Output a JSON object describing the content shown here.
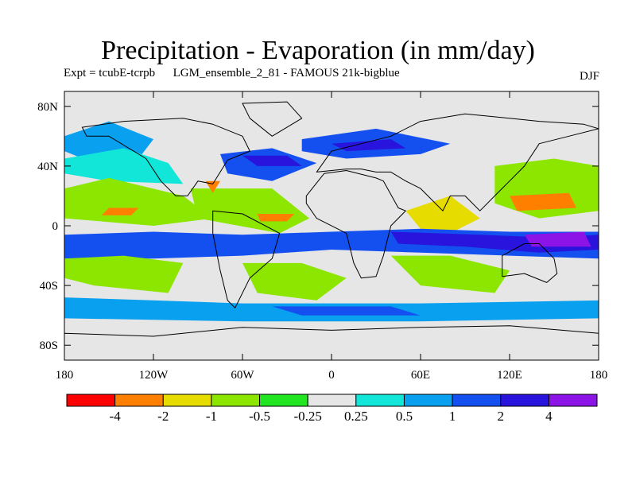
{
  "chart_data": {
    "type": "filled-contour map",
    "title": "Precipitation - Evaporation (in mm/day)",
    "subtitle": "Expt = tcubE-tcrpb      LGM_ensemble_2_81 - FAMOUS 21k-bigblue",
    "season": "DJF",
    "lon_range": [
      -180,
      180
    ],
    "lat_range": [
      -90,
      90
    ],
    "x_ticks": [
      {
        "lon": -180,
        "label": "180"
      },
      {
        "lon": -120,
        "label": "120W"
      },
      {
        "lon": -60,
        "label": "60W"
      },
      {
        "lon": 0,
        "label": "0"
      },
      {
        "lon": 60,
        "label": "60E"
      },
      {
        "lon": 120,
        "label": "120E"
      },
      {
        "lon": 180,
        "label": "180"
      }
    ],
    "y_ticks": [
      {
        "lat": 80,
        "label": "80N"
      },
      {
        "lat": 40,
        "label": "40N"
      },
      {
        "lat": 0,
        "label": "0"
      },
      {
        "lat": -40,
        "label": "40S"
      },
      {
        "lat": -80,
        "label": "80S"
      }
    ],
    "colorbar": {
      "colors": [
        "#ff0000",
        "#ff8000",
        "#e6dc00",
        "#8ce600",
        "#22e622",
        "#e6e6e6",
        "#12e6d8",
        "#0aa0f0",
        "#1450f0",
        "#2814dc",
        "#8c14e6"
      ],
      "labels": [
        "-4",
        "-2",
        "-1",
        "-0.5",
        "-0.25",
        "0.25",
        "0.5",
        "1",
        "2",
        "4"
      ]
    },
    "regions": [
      {
        "name": "north-pacific-wet",
        "lon": [
          -180,
          -150,
          -120,
          -130,
          -160,
          -180
        ],
        "lat": [
          60,
          70,
          58,
          45,
          42,
          50
        ],
        "level": 7
      },
      {
        "name": "north-pacific-moist",
        "lon": [
          -180,
          -140,
          -110,
          -100,
          -150,
          -180
        ],
        "lat": [
          45,
          52,
          42,
          28,
          30,
          35
        ],
        "level": 6
      },
      {
        "name": "north-pacific-dry",
        "lon": [
          -180,
          -150,
          -100,
          -80,
          -120,
          -180
        ],
        "lat": [
          25,
          32,
          20,
          5,
          0,
          5
        ],
        "level": 3
      },
      {
        "name": "north-pacific-core",
        "lon": [
          -150,
          -130,
          -135,
          -155
        ],
        "lat": [
          12,
          12,
          7,
          7
        ],
        "level": 1
      },
      {
        "name": "north-atlantic-wet",
        "lon": [
          -75,
          -40,
          -10,
          -40,
          -70
        ],
        "lat": [
          48,
          52,
          42,
          30,
          35
        ],
        "level": 8
      },
      {
        "name": "north-atlantic-core",
        "lon": [
          -60,
          -30,
          -20,
          -50
        ],
        "lat": [
          47,
          47,
          40,
          40
        ],
        "level": 9
      },
      {
        "name": "atlantic-dry-band",
        "lon": [
          -95,
          -40,
          -15,
          -35,
          -90
        ],
        "lat": [
          25,
          25,
          5,
          -5,
          5
        ],
        "level": 3
      },
      {
        "name": "atlantic-dry-core",
        "lon": [
          -50,
          -25,
          -30,
          -48
        ],
        "lat": [
          8,
          8,
          3,
          3
        ],
        "level": 1
      },
      {
        "name": "gulf-mexico-dry",
        "lon": [
          -85,
          -75,
          -80
        ],
        "lat": [
          30,
          30,
          22
        ],
        "level": 1
      },
      {
        "name": "eurasia-wet",
        "lon": [
          -20,
          30,
          80,
          60,
          10,
          -20
        ],
        "lat": [
          58,
          65,
          55,
          48,
          45,
          50
        ],
        "level": 8
      },
      {
        "name": "eurasia-core",
        "lon": [
          0,
          40,
          50,
          10
        ],
        "lat": [
          55,
          58,
          52,
          50
        ],
        "level": 9
      },
      {
        "name": "west-pacific-dry",
        "lon": [
          110,
          150,
          180,
          180,
          140,
          110
        ],
        "lat": [
          40,
          45,
          40,
          10,
          5,
          15
        ],
        "level": 3
      },
      {
        "name": "west-pacific-core",
        "lon": [
          120,
          160,
          165,
          125
        ],
        "lat": [
          20,
          22,
          12,
          10
        ],
        "level": 1
      },
      {
        "name": "indian-ocean-dry",
        "lon": [
          50,
          80,
          100,
          80,
          60
        ],
        "lat": [
          10,
          20,
          5,
          -5,
          -2
        ],
        "level": 2
      },
      {
        "name": "equatorial-wet-band",
        "lon": [
          -180,
          -120,
          -60,
          0,
          60,
          120,
          180,
          180,
          120,
          60,
          0,
          -60,
          -120,
          -180
        ],
        "lat": [
          -6,
          -4,
          -6,
          -4,
          -2,
          -4,
          -4,
          -22,
          -20,
          -18,
          -16,
          -20,
          -22,
          -22
        ],
        "level": 8
      },
      {
        "name": "equatorial-core",
        "lon": [
          40,
          100,
          150,
          180,
          180,
          140,
          90,
          45
        ],
        "lat": [
          -4,
          -6,
          -8,
          -6,
          -16,
          -18,
          -14,
          -12
        ],
        "level": 9
      },
      {
        "name": "equatorial-peak",
        "lon": [
          130,
          170,
          175,
          135
        ],
        "lat": [
          -6,
          -4,
          -14,
          -14
        ],
        "level": 10
      },
      {
        "name": "south-pacific-dry",
        "lon": [
          -180,
          -140,
          -100,
          -110,
          -160,
          -180
        ],
        "lat": [
          -22,
          -20,
          -25,
          -45,
          -40,
          -35
        ],
        "level": 3
      },
      {
        "name": "south-atlantic-dry",
        "lon": [
          -60,
          -20,
          10,
          -10,
          -50
        ],
        "lat": [
          -25,
          -25,
          -35,
          -50,
          -45
        ],
        "level": 3
      },
      {
        "name": "south-indian-dry",
        "lon": [
          40,
          80,
          120,
          110,
          60
        ],
        "lat": [
          -20,
          -20,
          -30,
          -45,
          -40
        ],
        "level": 3
      },
      {
        "name": "southern-ocean-wet",
        "lon": [
          -180,
          -60,
          60,
          180,
          180,
          60,
          -60,
          -180
        ],
        "lat": [
          -48,
          -52,
          -52,
          -50,
          -62,
          -64,
          -64,
          -62
        ],
        "level": 7
      },
      {
        "name": "southern-ocean-core",
        "lon": [
          -40,
          40,
          60,
          -20
        ],
        "lat": [
          -54,
          -54,
          -60,
          -60
        ],
        "level": 8
      }
    ],
    "land": [
      {
        "name": "north-america",
        "lon": [
          -168,
          -140,
          -100,
          -80,
          -60,
          -55,
          -70,
          -75,
          -80,
          -90,
          -97,
          -105,
          -115,
          -125,
          -150,
          -165
        ],
        "lat": [
          66,
          70,
          72,
          68,
          60,
          50,
          44,
          36,
          28,
          30,
          20,
          20,
          30,
          45,
          60,
          60
        ]
      },
      {
        "name": "greenland",
        "lon": [
          -60,
          -30,
          -20,
          -40,
          -55
        ],
        "lat": [
          82,
          83,
          72,
          60,
          72
        ]
      },
      {
        "name": "south-america",
        "lon": [
          -80,
          -60,
          -35,
          -40,
          -55,
          -65,
          -70,
          -75,
          -80
        ],
        "lat": [
          10,
          8,
          -5,
          -22,
          -35,
          -55,
          -50,
          -30,
          -5
        ]
      },
      {
        "name": "eurasia",
        "lon": [
          -10,
          0,
          20,
          40,
          60,
          90,
          120,
          140,
          170,
          180,
          160,
          140,
          130,
          120,
          110,
          100,
          90,
          80,
          75,
          60,
          50,
          40,
          30,
          20,
          10,
          -10
        ],
        "lat": [
          36,
          50,
          55,
          60,
          70,
          75,
          72,
          70,
          68,
          65,
          60,
          55,
          40,
          30,
          20,
          10,
          20,
          20,
          10,
          25,
          30,
          36,
          36,
          38,
          38,
          36
        ]
      },
      {
        "name": "africa",
        "lon": [
          -17,
          -5,
          10,
          30,
          35,
          45,
          50,
          40,
          35,
          30,
          20,
          15,
          10,
          -10,
          -17
        ],
        "lat": [
          20,
          35,
          37,
          32,
          30,
          12,
          10,
          0,
          -20,
          -34,
          -35,
          -25,
          -5,
          5,
          15
        ]
      },
      {
        "name": "australia",
        "lon": [
          115,
          130,
          140,
          150,
          152,
          145,
          130,
          115
        ],
        "lat": [
          -20,
          -12,
          -12,
          -22,
          -32,
          -38,
          -32,
          -34
        ]
      },
      {
        "name": "antarctica",
        "lon": [
          -180,
          -120,
          -60,
          0,
          60,
          120,
          180,
          180,
          -180
        ],
        "lat": [
          -72,
          -74,
          -68,
          -70,
          -68,
          -67,
          -72,
          -90,
          -90
        ]
      }
    ]
  }
}
